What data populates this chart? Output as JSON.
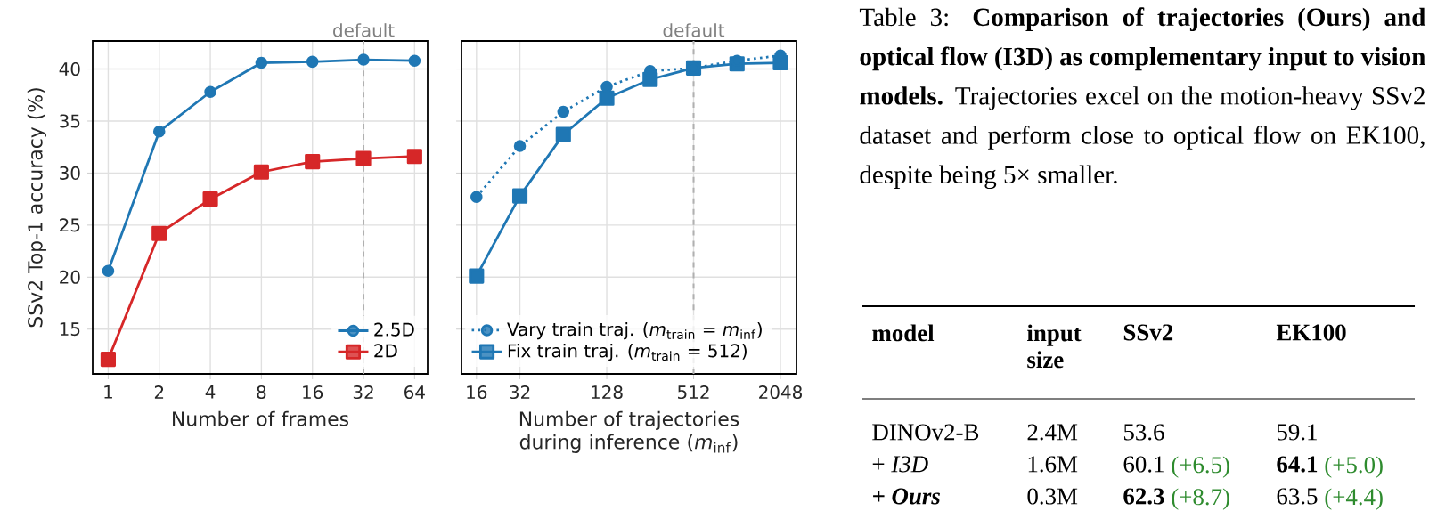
{
  "chart_data": [
    {
      "type": "line",
      "ylabel": "SSv2 Top-1 accuracy (%)",
      "xlabel": "Number of frames",
      "log": "x",
      "grid": true,
      "legend": "bottom right",
      "x": [
        1,
        2,
        4,
        8,
        16,
        32,
        64
      ],
      "xlim": [
        0.81,
        76.4
      ],
      "xticks": [
        1,
        2,
        4,
        8,
        16,
        32,
        64
      ],
      "ylim": [
        10.7,
        42.7
      ],
      "yticks": [
        15,
        20,
        25,
        30,
        35,
        40
      ],
      "series": [
        {
          "name": "2.5D",
          "color": "#1f77b4",
          "marker": "circle",
          "line_style": "solid",
          "values": [
            20.6,
            34.0,
            37.8,
            40.6,
            40.7,
            40.9,
            40.8
          ]
        },
        {
          "name": "2D",
          "color": "#d62728",
          "marker": "square",
          "line_style": "solid",
          "values": [
            12.1,
            24.2,
            27.5,
            30.1,
            31.1,
            31.4,
            31.6
          ]
        }
      ],
      "ref_lines": [
        {
          "axis": "x",
          "value": 32,
          "label": "default",
          "color": "#b0b0b0",
          "line_style": "dashed"
        }
      ]
    },
    {
      "type": "line",
      "xlabel": "Number of trajectories during inference (*m*$_{inf}$)",
      "log": "x",
      "grid": true,
      "legend": "bottom left",
      "tick_labels": "x",
      "x": [
        16,
        32,
        64,
        128,
        256,
        512,
        1024,
        2048
      ],
      "xlim": [
        12.6,
        2646
      ],
      "xticks": [
        16,
        32,
        128,
        512,
        2048
      ],
      "ylim": [
        10.7,
        42.7
      ],
      "yticks": [
        15,
        20,
        25,
        30,
        35,
        40
      ],
      "series": [
        {
          "name": "Vary train traj. (*m*$_{train}$ = *m*$_{inf}$)",
          "color": "#1f77b4",
          "marker": "circle",
          "line_style": "dotted",
          "values": [
            27.7,
            32.6,
            35.9,
            38.3,
            39.8,
            40.1,
            40.8,
            41.3
          ]
        },
        {
          "name": "Fix train traj. (*m*$_{train}$ = 512)",
          "color": "#1f77b4",
          "marker": "square",
          "line_style": "solid",
          "values": [
            20.1,
            27.8,
            33.7,
            37.2,
            39.0,
            40.1,
            40.5,
            40.6
          ]
        }
      ],
      "ref_lines": [
        {
          "axis": "x",
          "value": 512,
          "label": "default",
          "color": "#b0b0b0",
          "line_style": "dashed"
        }
      ]
    },
    {
      "type": "other",
      "annotations": [
        "Table 3: **Comparison of trajectories (Ours) and optical flow (I3D) as complementary input to vision models.** Trajectories excel on the motion-heavy SSv2 dataset and perform close to optical flow on EK100, despite being 5× smaller.",
        "model",
        "input size",
        "SSv2",
        "EK100",
        "DINOv2-B",
        "2.4M",
        "53.6",
        "59.1",
        "+ *I3D*",
        "1.6M",
        "60.1",
        "(+6.5)",
        "64.1",
        "(+5.0)",
        "+ Ours",
        "0.3M",
        "62.3",
        "(+8.7)",
        "63.5",
        "(+4.4)"
      ]
    }
  ]
}
